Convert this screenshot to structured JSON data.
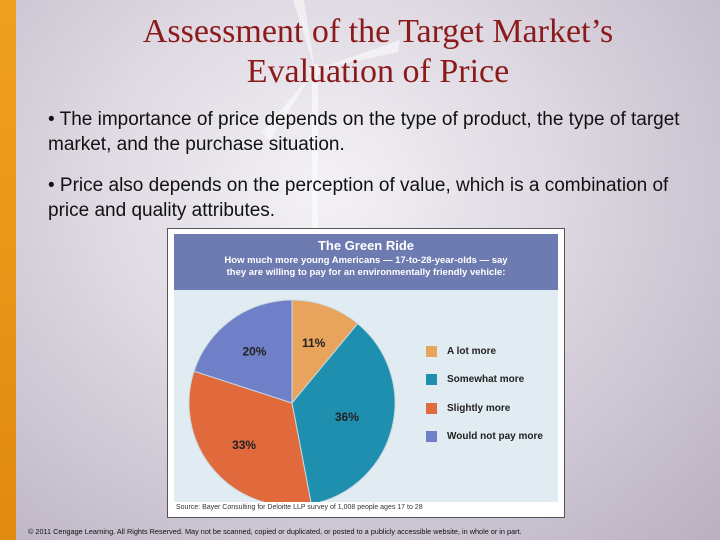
{
  "slide": {
    "title_line1": "Assessment of the Target Market’s",
    "title_line2": "Evaluation of Price",
    "bullets": [
      "• The importance of price depends on the type of product, the type of target market, and the purchase situation.",
      "• Price also depends on the perception of value, which is a combination of price and quality attributes."
    ],
    "footer": "© 2011 Cengage Learning. All Rights Reserved. May not be scanned, copied or duplicated, or posted to a publicly accessible website, in whole or in part.",
    "colors": {
      "title": "#8b1a1a",
      "accent_bar": "#f0a020"
    }
  },
  "figure": {
    "title": "The Green Ride",
    "subtitle_line1": "How much more young Americans — 17-to-28-year-olds — say",
    "subtitle_line2": "they are willing to pay for an environmentally friendly vehicle:",
    "source": "Source: Bayer Consulting for Deloitte LLP survey of 1,008 people ages 17 to 28"
  },
  "chart_data": {
    "type": "pie",
    "title": "The Green Ride",
    "series": [
      {
        "name": "A lot more",
        "value": 11,
        "label": "11%",
        "color": "#e8a35c"
      },
      {
        "name": "Somewhat more",
        "value": 36,
        "label": "36%",
        "color": "#1f8fb0"
      },
      {
        "name": "Slightly more",
        "value": 33,
        "label": "33%",
        "color": "#e06a3c"
      },
      {
        "name": "Would not pay more",
        "value": 20,
        "label": "20%",
        "color": "#6f7fc8"
      }
    ],
    "legend_position": "right"
  }
}
